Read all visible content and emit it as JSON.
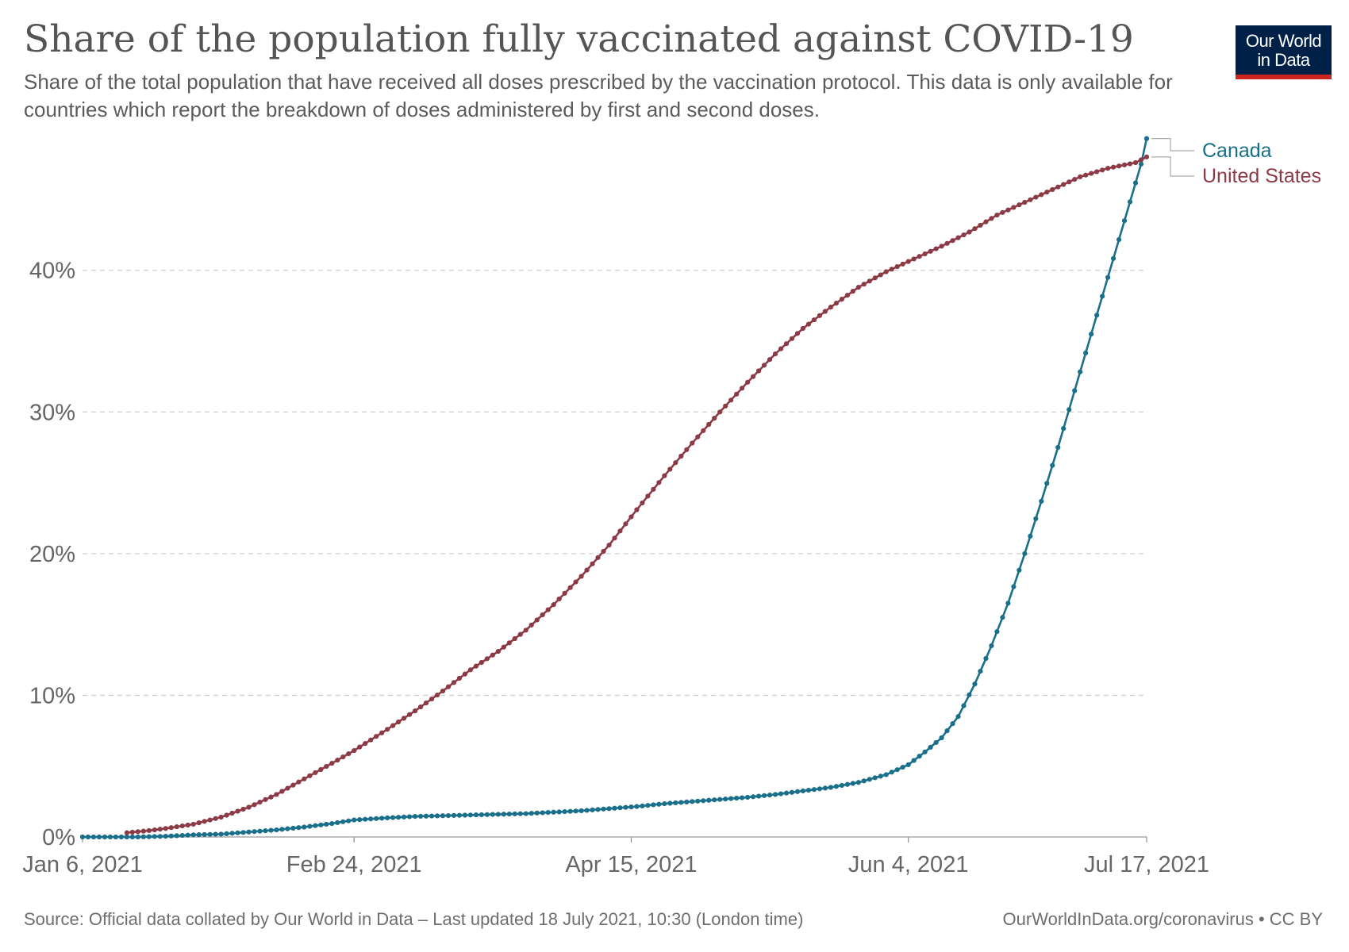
{
  "header": {
    "title": "Share of the population fully vaccinated against COVID-19",
    "subtitle": "Share of the total population that have received all doses prescribed by the vaccination protocol. This data is only available for countries which report the breakdown of doses administered by first and second doses."
  },
  "logo": {
    "line1": "Our World",
    "line2": "in Data",
    "bg_color": "#002147",
    "accent_color": "#ce261e"
  },
  "footer": {
    "source": "Source: Official data collated by Our World in Data – Last updated 18 July 2021, 10:30 (London time)",
    "license": "OurWorldInData.org/coronavirus • CC BY"
  },
  "chart_data": {
    "type": "line",
    "title": "Share of the population fully vaccinated against COVID-19",
    "xlabel": "",
    "ylabel": "",
    "x_range": [
      "2021-01-06",
      "2021-07-17"
    ],
    "ylim": [
      0,
      49
    ],
    "y_ticks": [
      0,
      10,
      20,
      30,
      40
    ],
    "y_tick_labels": [
      "0%",
      "10%",
      "20%",
      "30%",
      "40%"
    ],
    "x_ticks": [
      0,
      49,
      99,
      149,
      192
    ],
    "x_tick_labels": [
      "Jan 6, 2021",
      "Feb 24, 2021",
      "Apr 15, 2021",
      "Jun 4, 2021",
      "Jul 17, 2021"
    ],
    "grid": "horizontal-dashed",
    "legend": "right-end labels",
    "series": [
      {
        "name": "Canada",
        "color": "#1a6f8a",
        "points": [
          [
            0,
            0
          ],
          [
            10,
            0
          ],
          [
            15,
            0.05
          ],
          [
            20,
            0.15
          ],
          [
            25,
            0.2
          ],
          [
            30,
            0.35
          ],
          [
            35,
            0.5
          ],
          [
            40,
            0.7
          ],
          [
            45,
            0.95
          ],
          [
            49,
            1.2
          ],
          [
            55,
            1.35
          ],
          [
            60,
            1.45
          ],
          [
            65,
            1.5
          ],
          [
            70,
            1.55
          ],
          [
            75,
            1.6
          ],
          [
            80,
            1.65
          ],
          [
            85,
            1.75
          ],
          [
            90,
            1.85
          ],
          [
            95,
            2.0
          ],
          [
            100,
            2.15
          ],
          [
            105,
            2.35
          ],
          [
            110,
            2.5
          ],
          [
            115,
            2.65
          ],
          [
            120,
            2.8
          ],
          [
            125,
            3.0
          ],
          [
            130,
            3.25
          ],
          [
            135,
            3.5
          ],
          [
            140,
            3.85
          ],
          [
            145,
            4.4
          ],
          [
            149,
            5.1
          ],
          [
            152,
            6.0
          ],
          [
            155,
            7.0
          ],
          [
            158,
            8.5
          ],
          [
            161,
            10.8
          ],
          [
            164,
            13.5
          ],
          [
            167,
            16.5
          ],
          [
            170,
            20.0
          ],
          [
            173,
            23.7
          ],
          [
            176,
            27.5
          ],
          [
            179,
            31.5
          ],
          [
            182,
            35.5
          ],
          [
            185,
            39.5
          ],
          [
            188,
            43.5
          ],
          [
            191,
            47.5
          ],
          [
            192,
            49.3
          ]
        ]
      },
      {
        "name": "United States",
        "color": "#8c3a46",
        "points": [
          [
            8,
            0.3
          ],
          [
            12,
            0.45
          ],
          [
            15,
            0.6
          ],
          [
            20,
            0.9
          ],
          [
            25,
            1.4
          ],
          [
            30,
            2.1
          ],
          [
            35,
            3.0
          ],
          [
            40,
            4.1
          ],
          [
            45,
            5.2
          ],
          [
            49,
            6.1
          ],
          [
            55,
            7.6
          ],
          [
            60,
            8.9
          ],
          [
            65,
            10.3
          ],
          [
            70,
            11.8
          ],
          [
            75,
            13.1
          ],
          [
            80,
            14.6
          ],
          [
            85,
            16.4
          ],
          [
            90,
            18.4
          ],
          [
            95,
            20.6
          ],
          [
            100,
            23.1
          ],
          [
            105,
            25.5
          ],
          [
            110,
            27.8
          ],
          [
            115,
            30.0
          ],
          [
            120,
            32.1
          ],
          [
            125,
            34.1
          ],
          [
            130,
            35.9
          ],
          [
            135,
            37.4
          ],
          [
            140,
            38.8
          ],
          [
            145,
            39.9
          ],
          [
            150,
            40.8
          ],
          [
            155,
            41.7
          ],
          [
            160,
            42.7
          ],
          [
            165,
            43.9
          ],
          [
            170,
            44.8
          ],
          [
            175,
            45.7
          ],
          [
            180,
            46.6
          ],
          [
            185,
            47.2
          ],
          [
            190,
            47.6
          ],
          [
            192,
            48.0
          ]
        ]
      }
    ]
  }
}
